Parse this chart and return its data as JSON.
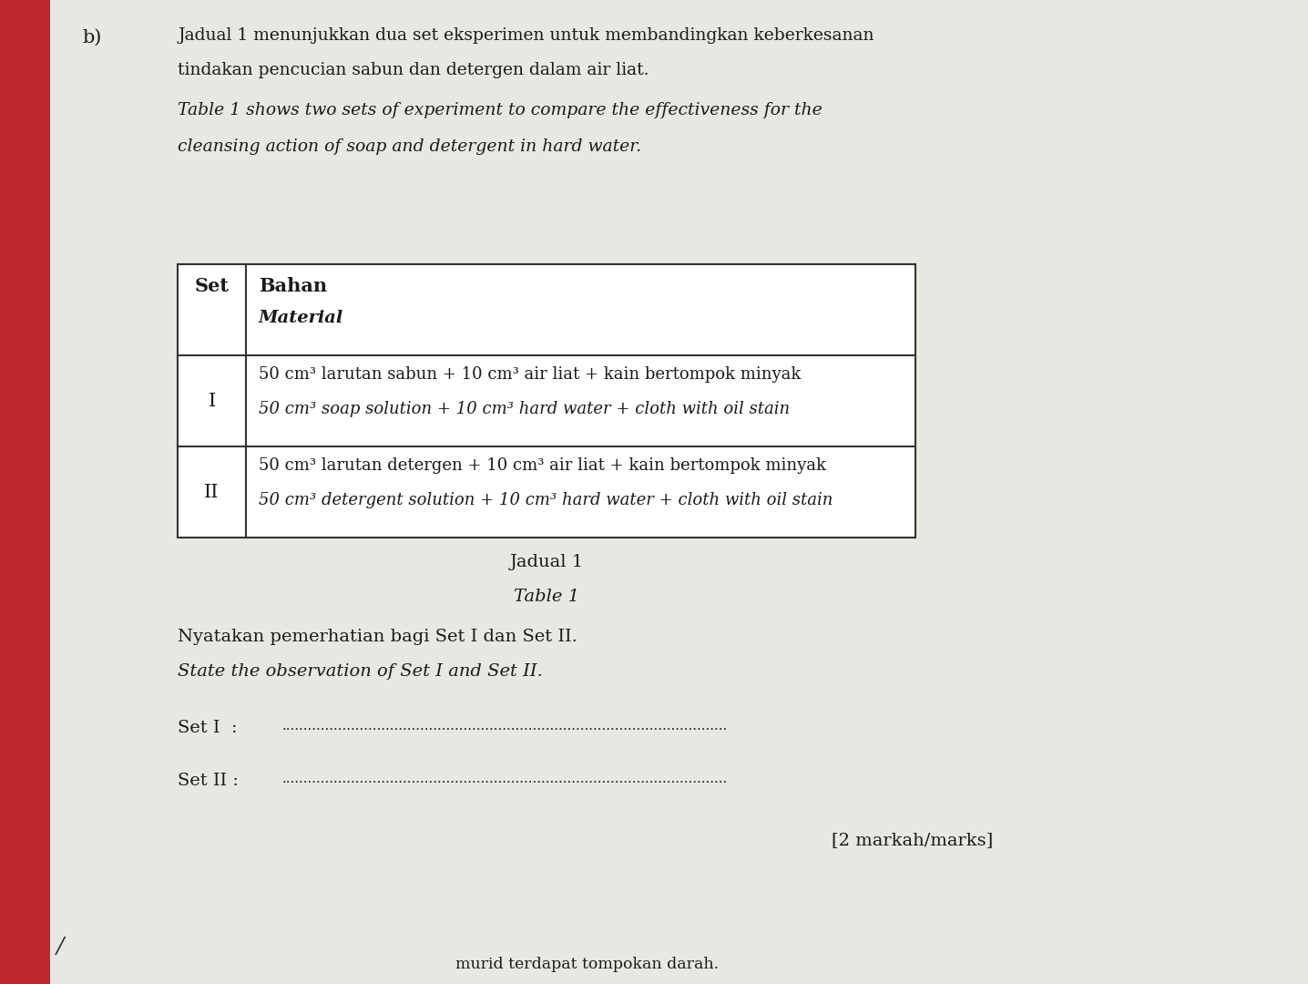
{
  "label_b": "b)",
  "intro_text_1": "Jadual 1 menunjukkan dua set eksperimen untuk membandingkan keberkesanan",
  "intro_text_2": "tindakan pencucian sabun dan detergen dalam air liat.",
  "intro_text_3": "Table 1 shows two sets of experiment to compare the effectiveness for the",
  "intro_text_4": "cleansing action of soap and detergent in hard water.",
  "table_caption_1": "Jadual 1",
  "table_caption_2": "Table 1",
  "header_col1": "Set",
  "header_col2_line1": "Bahan",
  "header_col2_line2": "Material",
  "row_I_label": "I",
  "row_I_line1": "50 cm³ larutan sabun + 10 cm³ air liat + kain bertompok minyak",
  "row_I_line2": "50 cm³ soap solution + 10 cm³ hard water + cloth with oil stain",
  "row_II_label": "II",
  "row_II_line1": "50 cm³ larutan detergen + 10 cm³ air liat + kain bertompok minyak",
  "row_II_line2": "50 cm³ detergent solution + 10 cm³ hard water + cloth with oil stain",
  "question_text_1": "Nyatakan pemerhatian bagi Set I dan Set II.",
  "question_text_2": "State the observation of Set I and Set II.",
  "set_I_label": "Set I  :",
  "set_I_dots": ".......................................................................................................",
  "set_II_label": "Set II :",
  "set_II_dots": ".......................................................................................................",
  "marks_text": "[2 markah/marks]",
  "bottom_text": "murid terdapat tompokan darah.",
  "bottom_slash": "/",
  "page_bg": "#dcdad4",
  "content_bg": "#e8e7e2",
  "red_strip": "#c0272d",
  "table_bg": "#ffffff",
  "table_border": "#333333",
  "text_color": "#1a1a1a"
}
